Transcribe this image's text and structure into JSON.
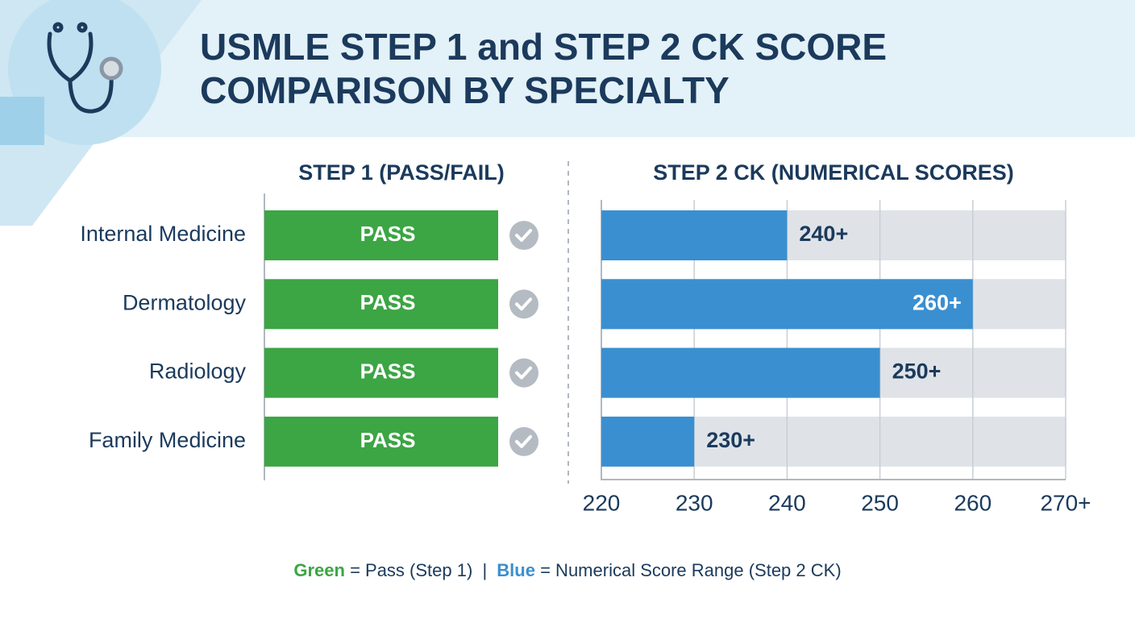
{
  "chart_data": {
    "type": "bar",
    "title": [
      "USMLE STEP 1 and STEP 2 CK SCORE",
      "COMPARISON BY SPECIALTY"
    ],
    "categories": [
      "Internal Medicine",
      "Dermatology",
      "Radiology",
      "Family Medicine"
    ],
    "step1": {
      "title": "STEP 1 (PASS/FAIL)",
      "values": [
        "PASS",
        "PASS",
        "PASS",
        "PASS"
      ],
      "color": "#3ca544"
    },
    "step2": {
      "title": "STEP 2 CK (NUMERICAL SCORES)",
      "values": [
        240,
        260,
        250,
        230
      ],
      "value_labels": [
        "240+",
        "260+",
        "250+",
        "230+"
      ],
      "color": "#3a8fd0",
      "track_color": "#dfe3e8",
      "xlim": [
        220,
        270
      ],
      "xticks": [
        220,
        230,
        240,
        250,
        260,
        {
          "value": 270,
          "label": "270+"
        }
      ],
      "grid": true
    },
    "legend": [
      {
        "name": "Green",
        "color": "#3ca544",
        "text": "= Pass (Step 1)"
      },
      {
        "name": "Blue",
        "color": "#3a8fd0",
        "text": "= Numerical Score Range (Step 2 CK)"
      }
    ],
    "legend_separator": "|"
  }
}
